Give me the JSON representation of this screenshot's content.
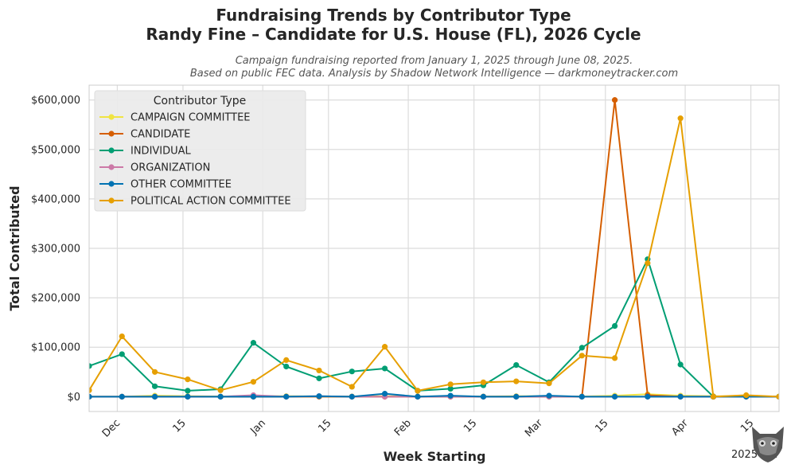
{
  "chart_data": {
    "type": "line",
    "title": "Fundraising Trends by Contributor Type",
    "title_line2": "Randy Fine – Candidate for U.S. House (FL), 2026 Cycle",
    "subtitle_line1": "Campaign fundraising reported from January 1, 2025 through June 08, 2025.",
    "subtitle_line2": "Based on public FEC data. Analysis by Shadow Network Intelligence — darkmoneytracker.com",
    "xlabel": "Week Starting",
    "ylabel": "Total Contributed",
    "x_tick_labels": [
      "Dec",
      "15",
      "Jan",
      "15",
      "Feb",
      "15",
      "Mar",
      "15",
      "Apr",
      "15"
    ],
    "x_offset_label": "2025-Apr",
    "y_tick_labels": [
      "$0",
      "$100,000",
      "$200,000",
      "$300,000",
      "$400,000",
      "$500,000",
      "$600,000"
    ],
    "y_ticks": [
      0,
      100000,
      200000,
      300000,
      400000,
      500000,
      600000
    ],
    "ylim": [
      -30000,
      630000
    ],
    "xlim": [
      "2024-11-25",
      "2025-04-21"
    ],
    "grid": true,
    "legend_title": "Contributor Type",
    "legend_position": "top-left",
    "x": [
      "2024-11-25",
      "2024-12-02",
      "2024-12-09",
      "2024-12-16",
      "2024-12-23",
      "2024-12-30",
      "2025-01-06",
      "2025-01-13",
      "2025-01-20",
      "2025-01-27",
      "2025-02-03",
      "2025-02-10",
      "2025-02-17",
      "2025-02-24",
      "2025-03-03",
      "2025-03-10",
      "2025-03-17",
      "2025-03-24",
      "2025-03-31",
      "2025-04-07",
      "2025-04-14",
      "2025-04-21"
    ],
    "series": [
      {
        "name": "CAMPAIGN COMMITTEE",
        "color": "#f0e442",
        "values": [
          0,
          0,
          2000,
          1000,
          500,
          1000,
          1000,
          500,
          500,
          1000,
          500,
          1000,
          500,
          1000,
          1000,
          500,
          2000,
          5000,
          2000,
          1000,
          1000,
          500
        ]
      },
      {
        "name": "CANDIDATE",
        "color": "#d55e00",
        "values": [
          0,
          0,
          0,
          0,
          0,
          0,
          0,
          0,
          0,
          0,
          0,
          0,
          0,
          0,
          0,
          0,
          600000,
          3000,
          0,
          0,
          0,
          0
        ]
      },
      {
        "name": "INDIVIDUAL",
        "color": "#009e73",
        "values": [
          62000,
          86000,
          21000,
          12000,
          15000,
          109000,
          61000,
          37000,
          51000,
          57000,
          12000,
          16000,
          23000,
          64000,
          29000,
          99000,
          143000,
          278000,
          65000,
          0,
          1000,
          0
        ]
      },
      {
        "name": "ORGANIZATION",
        "color": "#cc79a7",
        "values": [
          0,
          0,
          0,
          0,
          0,
          3000,
          0,
          1000,
          0,
          0,
          0,
          0,
          0,
          0,
          0,
          0,
          0,
          0,
          0,
          0,
          0,
          0
        ]
      },
      {
        "name": "OTHER COMMITTEE",
        "color": "#0072b2",
        "values": [
          0,
          0,
          0,
          0,
          0,
          0,
          0,
          1000,
          0,
          6000,
          0,
          2000,
          0,
          0,
          2000,
          0,
          0,
          0,
          0,
          0,
          0,
          0
        ]
      },
      {
        "name": "POLITICAL ACTION COMMITTEE",
        "color": "#e69f00",
        "values": [
          13000,
          122000,
          50000,
          35000,
          13000,
          30000,
          74000,
          53000,
          20000,
          101000,
          12000,
          25000,
          29000,
          31000,
          27000,
          83000,
          78000,
          270000,
          563000,
          0,
          3000,
          0
        ]
      }
    ]
  }
}
